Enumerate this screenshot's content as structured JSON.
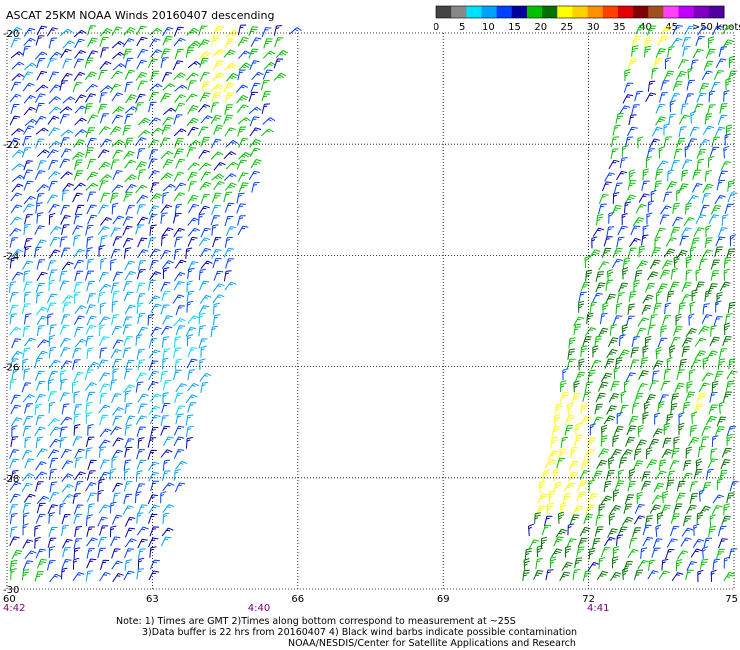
{
  "title": "ASCAT 25KM NOAA Winds 20160407 descending",
  "colorbar": {
    "labels": [
      "0",
      "5",
      "10",
      "15",
      "20",
      "25",
      "30",
      "35",
      "40",
      "45",
      ">50 knots"
    ],
    "colors": [
      "#444444",
      "#888888",
      "#00e0ff",
      "#00a0ff",
      "#0040ff",
      "#0000a0",
      "#00c000",
      "#007000",
      "#ffff00",
      "#ffd000",
      "#ff9000",
      "#ff4000",
      "#e00000",
      "#800000",
      "#a05020",
      "#ff40ff",
      "#c000ff",
      "#8000c0",
      "#5000a0"
    ]
  },
  "map": {
    "x_ticks": [
      "60",
      "63",
      "66",
      "69",
      "72",
      "75"
    ],
    "y_ticks": [
      "-20",
      "-22",
      "-24",
      "-26",
      "-28",
      "-30"
    ],
    "lon_range": [
      60,
      75
    ],
    "lat_range": [
      -30,
      -20
    ],
    "times": [
      {
        "label": "4:42",
        "lon": 60.0
      },
      {
        "label": "4:40",
        "lon": 65.2
      },
      {
        "label": "4:41",
        "lon": 72.2
      }
    ],
    "time_color": "#800080",
    "swaths": [
      {
        "name": "left",
        "top_lon": [
          60.0,
          65.9
        ],
        "bottom_lon": [
          60.0,
          63.1
        ]
      },
      {
        "name": "right",
        "top_lon": [
          72.9,
          75.0
        ],
        "bottom_lon": [
          70.5,
          75.0
        ]
      }
    ]
  },
  "notes": {
    "line1": "Note: 1) Times are GMT 2)Times along bottom correspond to measurement at ~25S",
    "line2": "3)Data buffer is 22 hrs from 20160407 4) Black wind barbs indicate possible contamination",
    "line3": "NOAA/NESDIS/Center for Satellite Applications and Research"
  }
}
